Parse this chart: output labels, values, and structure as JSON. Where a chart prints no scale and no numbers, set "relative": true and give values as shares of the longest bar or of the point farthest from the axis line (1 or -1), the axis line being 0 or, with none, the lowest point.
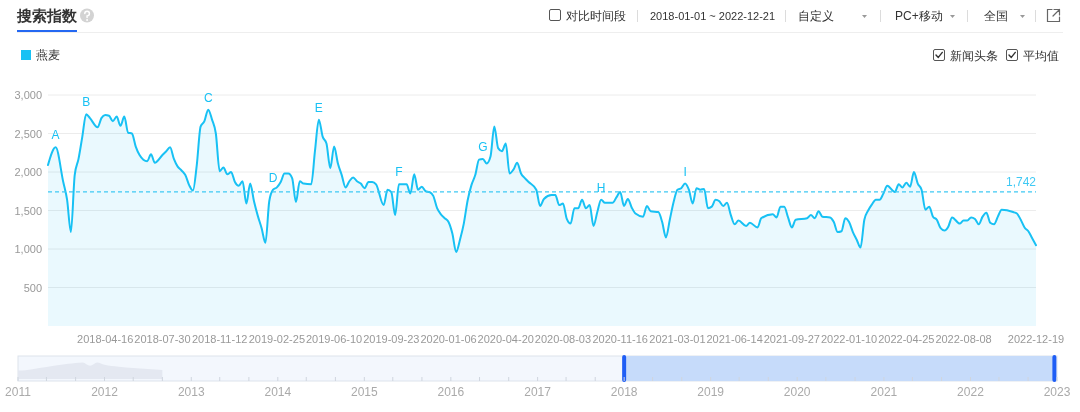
{
  "chart_data": [
    {
      "type": "area",
      "title": "搜索指数",
      "legend": "top left",
      "grid": "y",
      "xlim": [
        "2018-01-01",
        "2022-12-19"
      ],
      "xticks": [
        "2018-04-16",
        "2018-07-30",
        "2018-11-12",
        "2019-02-25",
        "2019-06-10",
        "2019-09-23",
        "2020-01-06",
        "2020-04-20",
        "2020-08-03",
        "2020-11-16",
        "2021-03-01",
        "2021-06-14",
        "2021-09-27",
        "2022-01-10",
        "2022-04-25",
        "2022-08-08",
        "2022-12-19"
      ],
      "ylim": [
        0,
        3000
      ],
      "yticks": [
        500,
        {
          "value": 1000,
          "label": "1,000"
        },
        {
          "value": 1500,
          "label": "1,500"
        },
        {
          "value": 2000,
          "label": "2,000"
        },
        {
          "value": 2500,
          "label": "2,500"
        },
        {
          "value": 3000,
          "label": "3,000"
        }
      ],
      "x": [
        "2018-01-01",
        "2018-01-15",
        "2018-01-29",
        "2018-02-05",
        "2018-02-12",
        "2018-02-19",
        "2018-02-26",
        "2018-03-05",
        "2018-03-12",
        "2018-03-19",
        "2018-04-02",
        "2018-04-09",
        "2018-04-16",
        "2018-04-23",
        "2018-04-30",
        "2018-05-07",
        "2018-05-14",
        "2018-05-21",
        "2018-05-28",
        "2018-06-04",
        "2018-06-11",
        "2018-06-18",
        "2018-06-25",
        "2018-07-02",
        "2018-07-09",
        "2018-07-16",
        "2018-07-30",
        "2018-08-06",
        "2018-08-13",
        "2018-08-20",
        "2018-08-27",
        "2018-09-03",
        "2018-09-10",
        "2018-09-17",
        "2018-09-24",
        "2018-10-01",
        "2018-10-08",
        "2018-10-15",
        "2018-10-22",
        "2018-10-29",
        "2018-11-05",
        "2018-11-12",
        "2018-11-19",
        "2018-11-26",
        "2018-12-03",
        "2018-12-10",
        "2018-12-17",
        "2018-12-24",
        "2018-12-31",
        "2019-01-07",
        "2019-01-14",
        "2019-01-21",
        "2019-01-28",
        "2019-02-04",
        "2019-02-11",
        "2019-02-18",
        "2019-02-25",
        "2019-03-04",
        "2019-03-11",
        "2019-03-18",
        "2019-03-25",
        "2019-04-01",
        "2019-04-08",
        "2019-04-15",
        "2019-04-29",
        "2019-05-06",
        "2019-05-13",
        "2019-05-20",
        "2019-05-27",
        "2019-06-03",
        "2019-06-10",
        "2019-06-17",
        "2019-06-24",
        "2019-07-01",
        "2019-07-08",
        "2019-07-15",
        "2019-07-22",
        "2019-07-29",
        "2019-08-05",
        "2019-08-12",
        "2019-08-19",
        "2019-08-26",
        "2019-09-09",
        "2019-09-16",
        "2019-09-23",
        "2019-09-30",
        "2019-10-07",
        "2019-10-21",
        "2019-10-28",
        "2019-11-04",
        "2019-11-11",
        "2019-11-18",
        "2019-11-25",
        "2019-12-02",
        "2019-12-09",
        "2019-12-16",
        "2019-12-23",
        "2019-12-30",
        "2020-01-06",
        "2020-01-13",
        "2020-01-20",
        "2020-01-27",
        "2020-02-03",
        "2020-02-10",
        "2020-02-17",
        "2020-02-24",
        "2020-03-02",
        "2020-03-09",
        "2020-03-16",
        "2020-03-23",
        "2020-03-30",
        "2020-04-06",
        "2020-04-13",
        "2020-04-20",
        "2020-04-27",
        "2020-05-04",
        "2020-05-11",
        "2020-05-18",
        "2020-05-25",
        "2020-06-01",
        "2020-06-15",
        "2020-06-22",
        "2020-06-29",
        "2020-07-13",
        "2020-07-20",
        "2020-07-27",
        "2020-08-03",
        "2020-08-10",
        "2020-08-17",
        "2020-08-24",
        "2020-08-31",
        "2020-09-07",
        "2020-09-14",
        "2020-09-21",
        "2020-09-28",
        "2020-10-05",
        "2020-10-12",
        "2020-10-19",
        "2020-11-02",
        "2020-11-09",
        "2020-11-16",
        "2020-11-23",
        "2020-11-30",
        "2020-12-07",
        "2020-12-14",
        "2020-12-28",
        "2021-01-04",
        "2021-01-11",
        "2021-01-25",
        "2021-02-01",
        "2021-02-08",
        "2021-02-15",
        "2021-02-22",
        "2021-03-01",
        "2021-03-08",
        "2021-03-15",
        "2021-03-22",
        "2021-03-29",
        "2021-04-05",
        "2021-04-12",
        "2021-04-19",
        "2021-04-26",
        "2021-05-03",
        "2021-05-10",
        "2021-05-17",
        "2021-05-24",
        "2021-05-31",
        "2021-06-07",
        "2021-06-14",
        "2021-06-21",
        "2021-07-05",
        "2021-07-12",
        "2021-07-26",
        "2021-08-02",
        "2021-08-23",
        "2021-08-30",
        "2021-09-06",
        "2021-09-13",
        "2021-09-20",
        "2021-09-27",
        "2021-10-04",
        "2021-10-25",
        "2021-11-01",
        "2021-11-08",
        "2021-11-15",
        "2021-11-22",
        "2021-12-06",
        "2021-12-13",
        "2021-12-20",
        "2021-12-27",
        "2022-01-03",
        "2022-01-10",
        "2022-01-17",
        "2022-01-24",
        "2022-01-31",
        "2022-02-07",
        "2022-02-14",
        "2022-02-21",
        "2022-02-28",
        "2022-03-07",
        "2022-03-14",
        "2022-03-21",
        "2022-04-04",
        "2022-04-11",
        "2022-04-18",
        "2022-04-25",
        "2022-05-02",
        "2022-05-09",
        "2022-05-16",
        "2022-05-23",
        "2022-05-30",
        "2022-06-06",
        "2022-06-13",
        "2022-06-20",
        "2022-06-27",
        "2022-07-04",
        "2022-07-11",
        "2022-07-18",
        "2022-08-01",
        "2022-08-08",
        "2022-08-15",
        "2022-08-22",
        "2022-08-29",
        "2022-09-05",
        "2022-09-12",
        "2022-09-19",
        "2022-09-26",
        "2022-10-03",
        "2022-10-10",
        "2022-10-17",
        "2022-11-07",
        "2022-11-14",
        "2022-11-21",
        "2022-11-28",
        "2022-12-05",
        "2022-12-12",
        "2022-12-19"
      ],
      "series": [
        {
          "name": "燕麦",
          "color": "#18c1f4",
          "values": [
            2090,
            2320,
            1870,
            1640,
            1220,
            1960,
            2170,
            2460,
            2750,
            2700,
            2580,
            2700,
            2740,
            2730,
            2660,
            2720,
            2600,
            2720,
            2510,
            2500,
            2330,
            2220,
            2160,
            2140,
            2230,
            2120,
            2220,
            2270,
            2320,
            2170,
            2070,
            2020,
            1960,
            1830,
            1760,
            2090,
            2590,
            2660,
            2810,
            2680,
            2500,
            2010,
            2060,
            1970,
            2000,
            1870,
            1820,
            1880,
            1590,
            1850,
            1620,
            1430,
            1270,
            1080,
            1620,
            1770,
            1800,
            1870,
            1980,
            1980,
            1920,
            1610,
            1880,
            1850,
            1840,
            2280,
            2680,
            2460,
            2370,
            2050,
            2330,
            2110,
            1960,
            1800,
            1880,
            1930,
            1880,
            1850,
            1790,
            1870,
            1870,
            1840,
            1570,
            1770,
            1740,
            1440,
            1840,
            1840,
            1720,
            1970,
            1770,
            1810,
            1750,
            1740,
            1690,
            1530,
            1450,
            1400,
            1350,
            1200,
            960,
            1120,
            1330,
            1630,
            1830,
            1960,
            2160,
            2170,
            2110,
            2200,
            2590,
            2310,
            2270,
            2370,
            1980,
            2030,
            2120,
            1980,
            1920,
            1870,
            1770,
            1560,
            1650,
            1700,
            1700,
            1570,
            1590,
            1390,
            1330,
            1530,
            1530,
            1640,
            1530,
            1570,
            1300,
            1480,
            1640,
            1600,
            1600,
            1670,
            1740,
            1560,
            1650,
            1540,
            1460,
            1420,
            1560,
            1490,
            1480,
            1350,
            1150,
            1380,
            1610,
            1770,
            1790,
            1850,
            1770,
            1590,
            1790,
            1770,
            1780,
            1530,
            1550,
            1640,
            1620,
            1560,
            1600,
            1440,
            1320,
            1370,
            1300,
            1340,
            1280,
            1400,
            1450,
            1410,
            1550,
            1550,
            1410,
            1280,
            1380,
            1400,
            1440,
            1400,
            1490,
            1420,
            1410,
            1350,
            1220,
            1230,
            1400,
            1350,
            1220,
            1120,
            1020,
            1380,
            1500,
            1580,
            1640,
            1640,
            1720,
            1820,
            1740,
            1840,
            1800,
            1860,
            1810,
            2000,
            1850,
            1770,
            1510,
            1550,
            1420,
            1380,
            1270,
            1240,
            1290,
            1410,
            1330,
            1370,
            1370,
            1410,
            1390,
            1320,
            1420,
            1470,
            1340,
            1320,
            1420,
            1510,
            1480,
            1460,
            1380,
            1280,
            1230,
            1140,
            1050
          ]
        }
      ],
      "ref_lines": [
        {
          "axis": "y",
          "value": 1742,
          "label": "1,742",
          "color": "#3fc9f4",
          "line_style": "dashed"
        }
      ],
      "annotations": [
        "对比时间段",
        "2018-01-01 ~ 2022-12-21",
        "自定义",
        "PC+移动",
        "全国",
        "新闻头条",
        "平均值",
        {
          "text": "A",
          "x": "2018-01-15",
          "y": 2320
        },
        {
          "text": "B",
          "x": "2018-03-12",
          "y": 2750
        },
        {
          "text": "C",
          "x": "2018-10-22",
          "y": 2810
        },
        {
          "text": "D",
          "x": "2019-02-18",
          "y": 1770
        },
        {
          "text": "E",
          "x": "2019-05-13",
          "y": 2680
        },
        {
          "text": "F",
          "x": "2019-10-07",
          "y": 1840
        },
        {
          "text": "G",
          "x": "2020-03-09",
          "y": 2170
        },
        {
          "text": "H",
          "x": "2020-10-12",
          "y": 1640
        },
        {
          "text": "I",
          "x": "2021-03-15",
          "y": 1850
        }
      ]
    },
    {
      "type": "area",
      "relative": true,
      "xlim": [
        "2011-01-01",
        "2023-01-01"
      ],
      "xticks": [
        "2011",
        {
          "value": "2011-05",
          "label": null
        },
        {
          "value": "2011-09",
          "label": null
        },
        "2012",
        {
          "value": "2012-05",
          "label": null
        },
        {
          "value": "2012-09",
          "label": null
        },
        "2013",
        {
          "value": "2013-05",
          "label": null
        },
        {
          "value": "2013-09",
          "label": null
        },
        "2014",
        {
          "value": "2014-05",
          "label": null
        },
        {
          "value": "2014-09",
          "label": null
        },
        "2015",
        {
          "value": "2015-05",
          "label": null
        },
        {
          "value": "2015-09",
          "label": null
        },
        "2016",
        {
          "value": "2016-05",
          "label": null
        },
        {
          "value": "2016-09",
          "label": null
        },
        "2017",
        {
          "value": "2017-05",
          "label": null
        },
        {
          "value": "2017-09",
          "label": null
        },
        "2018",
        {
          "value": "2018-05",
          "label": null
        },
        {
          "value": "2018-09",
          "label": null
        },
        "2019",
        {
          "value": "2019-05",
          "label": null
        },
        {
          "value": "2019-09",
          "label": null
        },
        "2020",
        {
          "value": "2020-05",
          "label": null
        },
        {
          "value": "2020-09",
          "label": null
        },
        "2021",
        {
          "value": "2021-05",
          "label": null
        },
        {
          "value": "2021-09",
          "label": null
        },
        "2022",
        {
          "value": "2022-05",
          "label": null
        },
        {
          "value": "2022-09",
          "label": null
        },
        "2023"
      ],
      "x": [
        "2011-01",
        "2011-02",
        "2011-04",
        "2011-06",
        "2011-08",
        "2011-10",
        "2011-11",
        "2011-12",
        "2012-01",
        "2012-03",
        "2012-05",
        "2012-07",
        "2012-09"
      ],
      "series": [
        {
          "color": "#e4e8f1",
          "values": [
            0.51,
            0.53,
            0.66,
            0.8,
            0.92,
            1,
            0.8,
            1,
            0.86,
            0.75,
            0.66,
            0.6,
            0.55
          ]
        }
      ],
      "bands": [
        {
          "axis": "x",
          "from": "2018-01-01",
          "to": "2022-12-21",
          "color": "#c6dbfa"
        }
      ]
    }
  ]
}
